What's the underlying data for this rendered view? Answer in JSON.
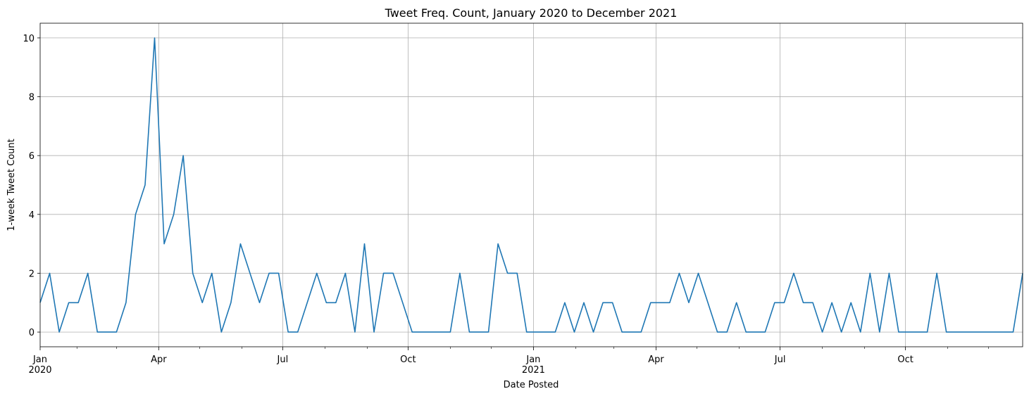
{
  "chart_data": {
    "type": "line",
    "title": "Tweet Freq. Count, January 2020 to December 2021",
    "xlabel": "Date Posted",
    "ylabel": "1-week Tweet Count",
    "xlim": [
      "2020-01-05",
      "2021-12-26"
    ],
    "ylim": [
      -0.5,
      10.5
    ],
    "grid": true,
    "color": "#1f77b4",
    "y_ticks": [
      0,
      2,
      4,
      6,
      8,
      10
    ],
    "x_major_ticks": [
      {
        "date": "2020-01-01",
        "label": "Jan",
        "sublabel": "2020"
      },
      {
        "date": "2020-04-01",
        "label": "Apr",
        "sublabel": ""
      },
      {
        "date": "2020-07-01",
        "label": "Jul",
        "sublabel": ""
      },
      {
        "date": "2020-10-01",
        "label": "Oct",
        "sublabel": ""
      },
      {
        "date": "2021-01-01",
        "label": "Jan",
        "sublabel": "2021"
      },
      {
        "date": "2021-04-01",
        "label": "Apr",
        "sublabel": ""
      },
      {
        "date": "2021-07-01",
        "label": "Jul",
        "sublabel": ""
      },
      {
        "date": "2021-10-01",
        "label": "Oct",
        "sublabel": ""
      }
    ],
    "x_minor_ticks": [
      "2020-02-01",
      "2020-03-01",
      "2020-05-01",
      "2020-06-01",
      "2020-08-01",
      "2020-09-01",
      "2020-11-01",
      "2020-12-01",
      "2021-02-01",
      "2021-03-01",
      "2021-05-01",
      "2021-06-01",
      "2021-08-01",
      "2021-09-01",
      "2021-11-01",
      "2021-12-01"
    ],
    "series": [
      {
        "x": [
          "2020-01-05",
          "2020-01-12",
          "2020-01-19",
          "2020-01-26",
          "2020-02-02",
          "2020-02-09",
          "2020-02-16",
          "2020-02-23",
          "2020-03-01",
          "2020-03-08",
          "2020-03-15",
          "2020-03-22",
          "2020-03-29",
          "2020-04-05",
          "2020-04-12",
          "2020-04-19",
          "2020-04-26",
          "2020-05-03",
          "2020-05-10",
          "2020-05-17",
          "2020-05-24",
          "2020-05-31",
          "2020-06-07",
          "2020-06-14",
          "2020-06-21",
          "2020-06-28",
          "2020-07-05",
          "2020-07-12",
          "2020-07-19",
          "2020-07-26",
          "2020-08-02",
          "2020-08-09",
          "2020-08-16",
          "2020-08-23",
          "2020-08-30",
          "2020-09-06",
          "2020-09-13",
          "2020-09-20",
          "2020-09-27",
          "2020-10-04",
          "2020-10-11",
          "2020-10-18",
          "2020-10-25",
          "2020-11-01",
          "2020-11-08",
          "2020-11-15",
          "2020-11-22",
          "2020-11-29",
          "2020-12-06",
          "2020-12-13",
          "2020-12-20",
          "2020-12-27",
          "2021-01-03",
          "2021-01-10",
          "2021-01-17",
          "2021-01-24",
          "2021-01-31",
          "2021-02-07",
          "2021-02-14",
          "2021-02-21",
          "2021-02-28",
          "2021-03-07",
          "2021-03-14",
          "2021-03-21",
          "2021-03-28",
          "2021-04-04",
          "2021-04-11",
          "2021-04-18",
          "2021-04-25",
          "2021-05-02",
          "2021-05-09",
          "2021-05-16",
          "2021-05-23",
          "2021-05-30",
          "2021-06-06",
          "2021-06-13",
          "2021-06-20",
          "2021-06-27",
          "2021-07-04",
          "2021-07-11",
          "2021-07-18",
          "2021-07-25",
          "2021-08-01",
          "2021-08-08",
          "2021-08-15",
          "2021-08-22",
          "2021-08-29",
          "2021-09-05",
          "2021-09-12",
          "2021-09-19",
          "2021-09-26",
          "2021-10-03",
          "2021-10-10",
          "2021-10-17",
          "2021-10-24",
          "2021-10-31",
          "2021-11-07",
          "2021-11-14",
          "2021-11-21",
          "2021-11-28",
          "2021-12-05",
          "2021-12-12",
          "2021-12-19",
          "2021-12-26"
        ],
        "y": [
          1,
          2,
          0,
          1,
          1,
          2,
          0,
          0,
          0,
          1,
          4,
          5,
          10,
          3,
          4,
          6,
          2,
          1,
          2,
          0,
          1,
          3,
          2,
          1,
          2,
          2,
          0,
          0,
          1,
          2,
          1,
          1,
          2,
          0,
          3,
          0,
          2,
          2,
          1,
          0,
          0,
          0,
          0,
          0,
          2,
          0,
          0,
          0,
          3,
          2,
          2,
          0,
          0,
          0,
          0,
          1,
          0,
          1,
          0,
          1,
          1,
          0,
          0,
          0,
          1,
          1,
          1,
          2,
          1,
          2,
          1,
          0,
          0,
          1,
          0,
          0,
          0,
          1,
          1,
          2,
          1,
          1,
          0,
          1,
          0,
          1,
          0,
          2,
          0,
          2,
          0,
          0,
          0,
          0,
          2,
          0,
          0,
          0,
          0,
          0,
          0,
          0,
          0,
          2
        ]
      }
    ]
  }
}
